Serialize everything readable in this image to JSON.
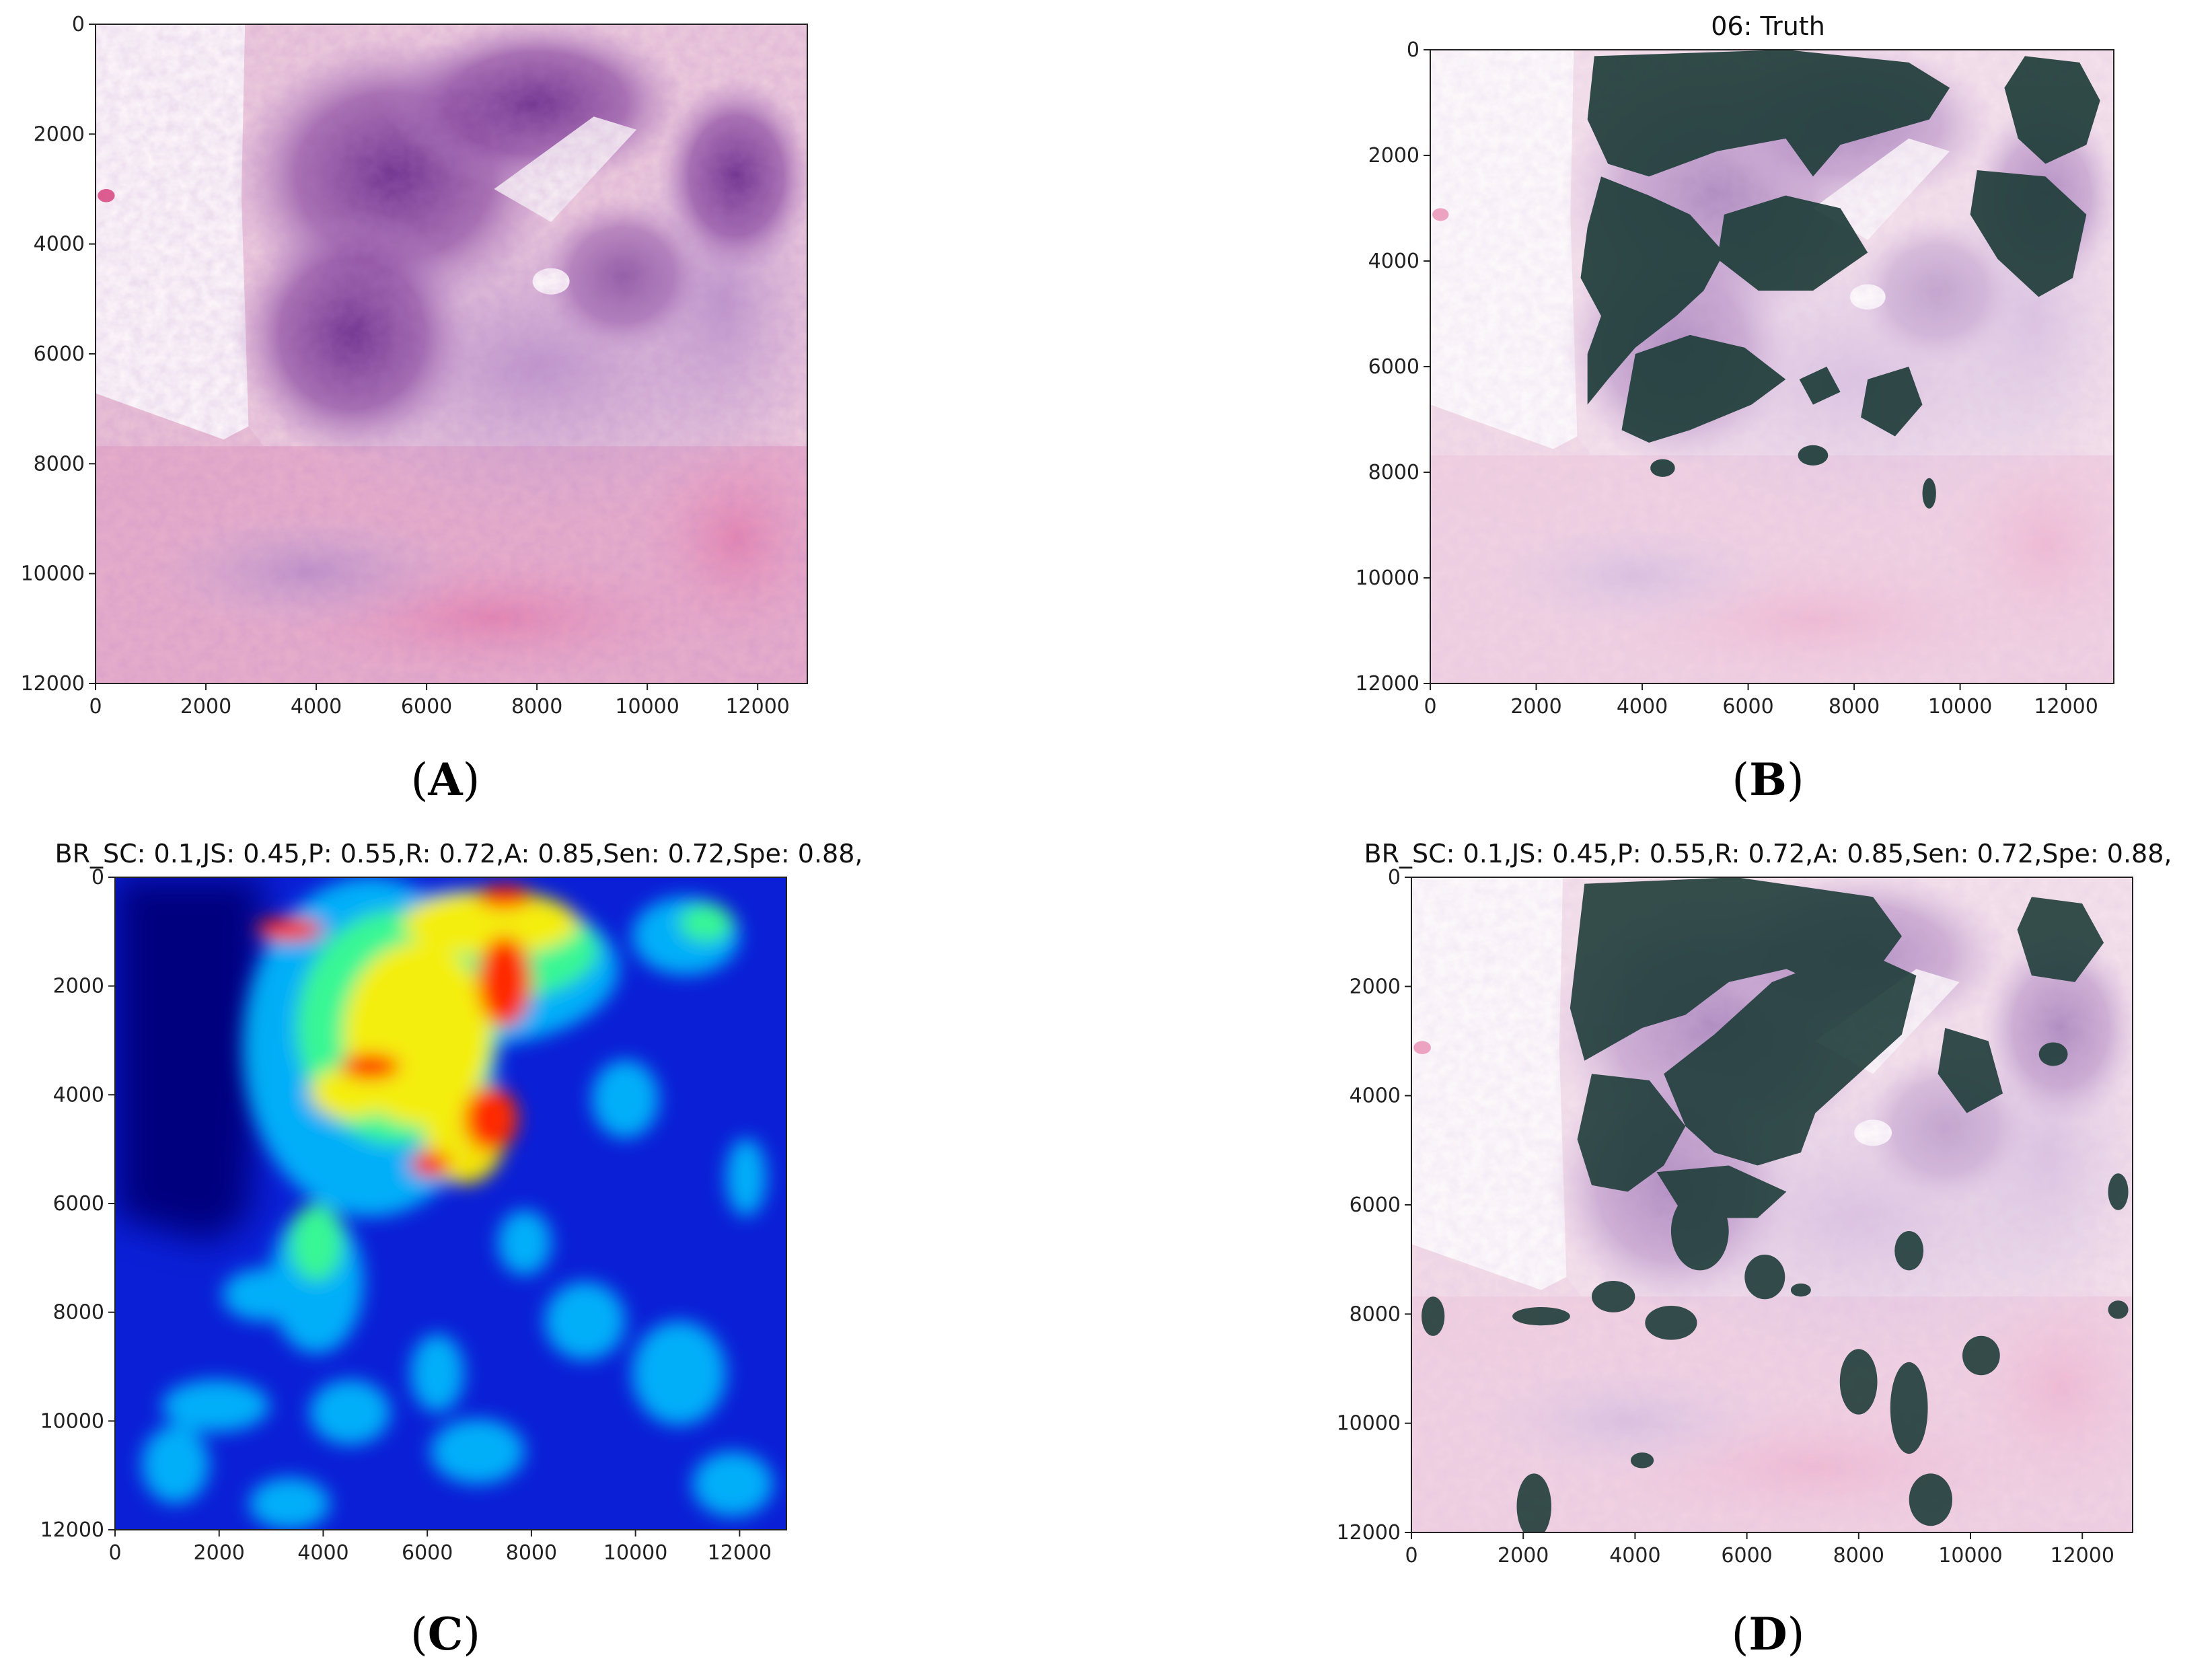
{
  "figure": {
    "captions": [
      "A",
      "B",
      "C",
      "D"
    ],
    "panels": [
      {
        "id": "A",
        "title": "",
        "kind": "h-and-e-slide",
        "x_ticks": [
          "0",
          "2000",
          "4000",
          "6000",
          "8000",
          "10000",
          "12000"
        ],
        "y_ticks": [
          "0",
          "2000",
          "4000",
          "6000",
          "8000",
          "10000",
          "12000"
        ]
      },
      {
        "id": "B",
        "title": "06: Truth",
        "kind": "h-and-e-slide-with-truth-mask",
        "x_ticks": [
          "0",
          "2000",
          "4000",
          "6000",
          "8000",
          "10000",
          "12000"
        ],
        "y_ticks": [
          "0",
          "2000",
          "4000",
          "6000",
          "8000",
          "10000",
          "12000"
        ]
      },
      {
        "id": "C",
        "title": "BR_SC: 0.1,JS: 0.45,P: 0.55,R: 0.72,A: 0.85,Sen: 0.72,Spe: 0.88,",
        "kind": "jet-heatmap",
        "x_ticks": [
          "0",
          "2000",
          "4000",
          "6000",
          "8000",
          "10000",
          "12000"
        ],
        "y_ticks": [
          "0",
          "2000",
          "4000",
          "6000",
          "8000",
          "10000",
          "12000"
        ]
      },
      {
        "id": "D",
        "title": "BR_SC: 0.1,JS: 0.45,P: 0.55,R: 0.72,A: 0.85,Sen: 0.72,Spe: 0.88,",
        "kind": "h-and-e-slide-with-predicted-mask",
        "x_ticks": [
          "0",
          "2000",
          "4000",
          "6000",
          "8000",
          "10000",
          "12000"
        ],
        "y_ticks": [
          "0",
          "2000",
          "4000",
          "6000",
          "8000",
          "10000",
          "12000"
        ]
      }
    ],
    "axis_range": {
      "x": [
        0,
        12900
      ],
      "y": [
        0,
        12000
      ]
    },
    "colors": {
      "stain_pink": "#e8b8d0",
      "stain_purple": "#8a4aa0",
      "mask_dark": "#1f3d3a",
      "heat_low": "#00007f",
      "heat_high": "#ff0000"
    }
  }
}
